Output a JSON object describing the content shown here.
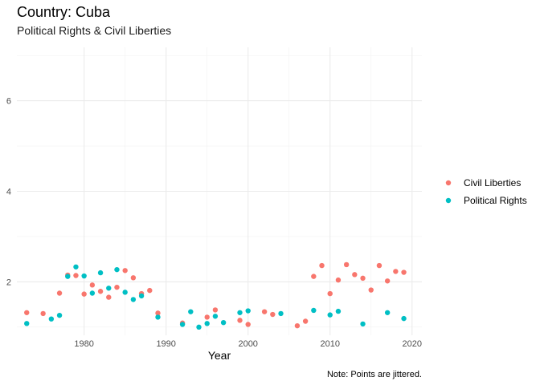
{
  "chart_data": {
    "type": "scatter",
    "title": "Country: Cuba",
    "subtitle": "Political Rights & Civil Liberties",
    "xlabel": "Year",
    "ylabel": "",
    "caption": "Note: Points are jittered.",
    "xlim": [
      1971.8,
      2021.2
    ],
    "ylim": [
      0.82,
      7.18
    ],
    "x_ticks": [
      1980,
      1990,
      2000,
      2010,
      2020
    ],
    "y_ticks": [
      2,
      4,
      6
    ],
    "grid": true,
    "legend_position": "right",
    "series": [
      {
        "name": "Civil Liberties",
        "color": "#F8766D",
        "points": [
          [
            1973,
            1.32
          ],
          [
            1975,
            1.3
          ],
          [
            1977,
            1.75
          ],
          [
            1978,
            2.15
          ],
          [
            1979,
            2.14
          ],
          [
            1980,
            1.73
          ],
          [
            1981,
            1.93
          ],
          [
            1982,
            1.79
          ],
          [
            1983,
            1.66
          ],
          [
            1984,
            1.88
          ],
          [
            1985,
            2.25
          ],
          [
            1986,
            2.09
          ],
          [
            1987,
            1.74
          ],
          [
            1988,
            1.81
          ],
          [
            1989,
            1.31
          ],
          [
            1992,
            1.09
          ],
          [
            1995,
            1.22
          ],
          [
            1996,
            1.38
          ],
          [
            1999,
            1.15
          ],
          [
            2000,
            1.06
          ],
          [
            2002,
            1.34
          ],
          [
            2003,
            1.28
          ],
          [
            2006,
            1.03
          ],
          [
            2007,
            1.13
          ],
          [
            2008,
            2.12
          ],
          [
            2009,
            2.36
          ],
          [
            2010,
            1.74
          ],
          [
            2011,
            2.04
          ],
          [
            2012,
            2.38
          ],
          [
            2013,
            2.16
          ],
          [
            2014,
            2.08
          ],
          [
            2015,
            1.82
          ],
          [
            2016,
            2.36
          ],
          [
            2017,
            2.02
          ],
          [
            2018,
            2.23
          ],
          [
            2019,
            2.21
          ]
        ]
      },
      {
        "name": "Political Rights",
        "color": "#00BFC4",
        "points": [
          [
            1973,
            1.08
          ],
          [
            1976,
            1.18
          ],
          [
            1977,
            1.26
          ],
          [
            1978,
            2.12
          ],
          [
            1979,
            2.33
          ],
          [
            1980,
            2.13
          ],
          [
            1981,
            1.75
          ],
          [
            1982,
            2.2
          ],
          [
            1983,
            1.86
          ],
          [
            1984,
            2.27
          ],
          [
            1985,
            1.77
          ],
          [
            1986,
            1.61
          ],
          [
            1987,
            1.69
          ],
          [
            1989,
            1.22
          ],
          [
            1992,
            1.06
          ],
          [
            1993,
            1.34
          ],
          [
            1994,
            1.0
          ],
          [
            1995,
            1.08
          ],
          [
            1996,
            1.24
          ],
          [
            1997,
            1.1
          ],
          [
            1999,
            1.32
          ],
          [
            2000,
            1.36
          ],
          [
            2004,
            1.3
          ],
          [
            2008,
            1.37
          ],
          [
            2010,
            1.27
          ],
          [
            2011,
            1.35
          ],
          [
            2014,
            1.07
          ],
          [
            2017,
            1.32
          ],
          [
            2019,
            1.19
          ]
        ]
      }
    ]
  }
}
